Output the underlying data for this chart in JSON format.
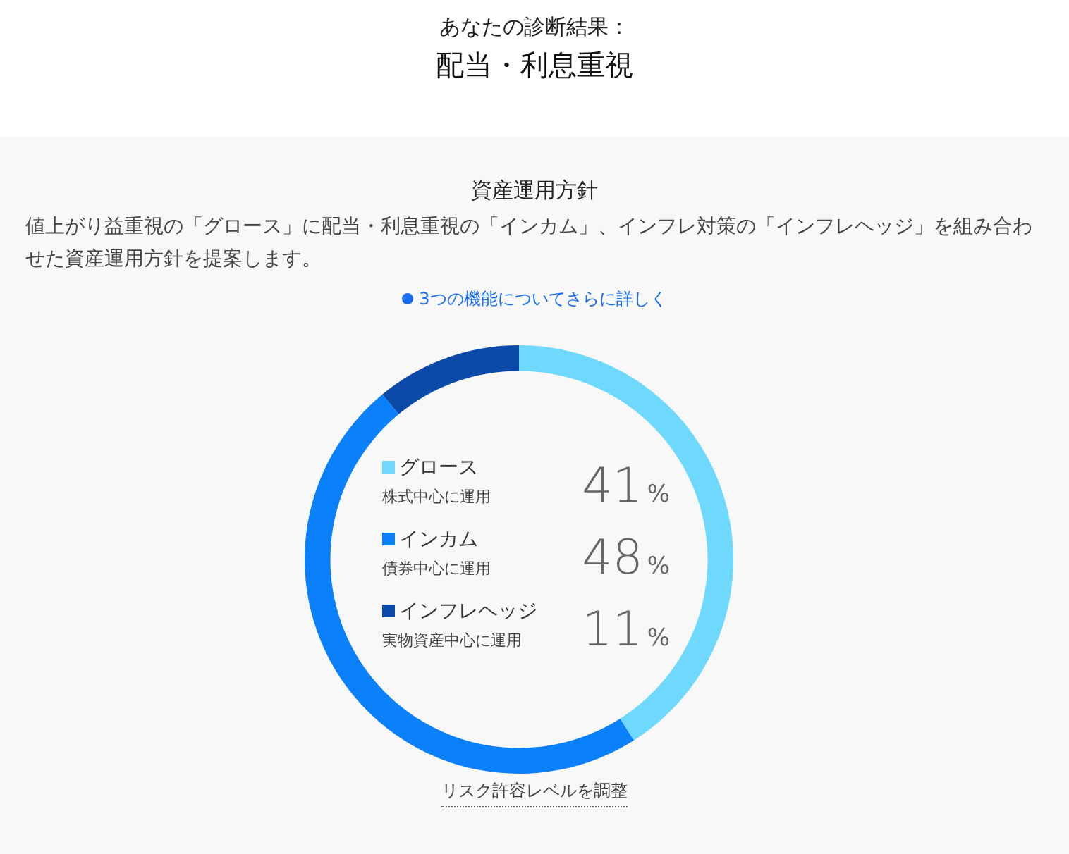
{
  "chart_data": {
    "type": "donut",
    "title": "あなたの診断結果：",
    "subtitle": "配当・利息重視",
    "categories": [
      "グロース",
      "インカム",
      "インフレヘッジ"
    ],
    "values": [
      41,
      48,
      11
    ],
    "colors": [
      "#6fd8fd",
      "#0a80fb",
      "#0c4aaa"
    ],
    "value_labels": [
      "41%",
      "48%",
      "11%"
    ],
    "legend": "center",
    "annotations": [
      "資産運用方針",
      "値上がり益重視の「グロース」に配当・利息重視の「インカム」、インフレ対策の「インフレヘッジ」を組み合わせた資産運用方針を提案します。",
      "3つの機能についてさらに詳しく",
      "株式中心に運用",
      "債券中心に運用",
      "実物資産中心に運用",
      "リスク許容レベルを調整"
    ]
  }
}
